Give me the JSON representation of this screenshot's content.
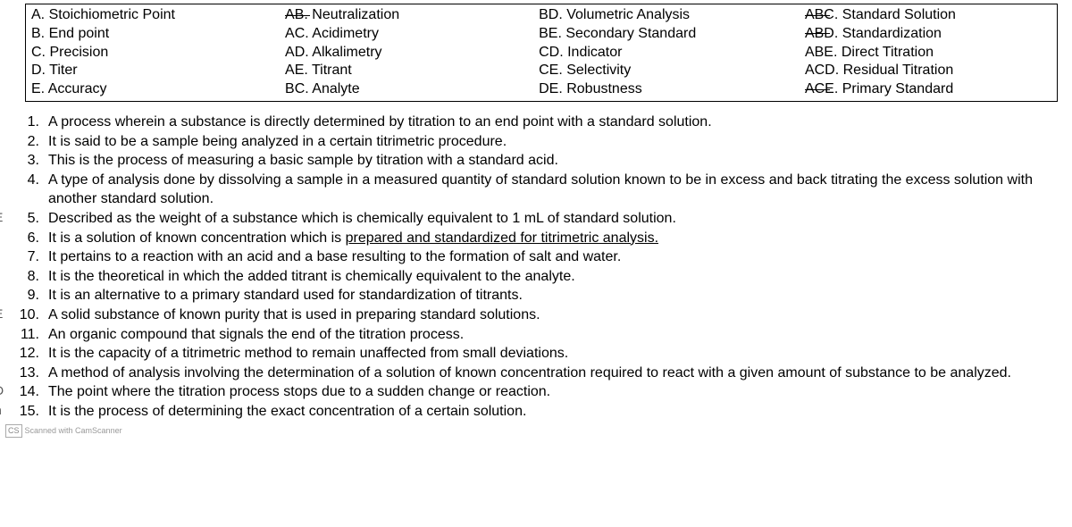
{
  "choices": {
    "col1": [
      {
        "code": "A.",
        "label": "Stoichiometric Point",
        "strike": false
      },
      {
        "code": "B.",
        "label": "End point",
        "strike": false
      },
      {
        "code": "C.",
        "label": "Precision",
        "strike": false
      },
      {
        "code": "D.",
        "label": "Titer",
        "strike": false
      },
      {
        "code": "E.",
        "label": "Accuracy",
        "strike": false
      }
    ],
    "col2": [
      {
        "code": "AB.",
        "label": "Neutralization",
        "strike": true
      },
      {
        "code": "AC.",
        "label": "Acidimetry",
        "strike": false
      },
      {
        "code": "AD.",
        "label": "Alkalimetry",
        "strike": false
      },
      {
        "code": "AE.",
        "label": "Titrant",
        "strike": false
      },
      {
        "code": "BC.",
        "label": "Analyte",
        "strike": false
      }
    ],
    "col3": [
      {
        "code": "BD.",
        "label": "Volumetric Analysis",
        "strike": false
      },
      {
        "code": "BE.",
        "label": "Secondary Standard",
        "strike": false
      },
      {
        "code": "CD.",
        "label": "Indicator",
        "strike": false
      },
      {
        "code": "CE.",
        "label": "Selectivity",
        "strike": false
      },
      {
        "code": "DE.",
        "label": "Robustness",
        "strike": false
      }
    ],
    "col4": [
      {
        "code": "ABC.",
        "label": "Standard Solution",
        "strike": true
      },
      {
        "code": "ABD.",
        "label": "Standardization",
        "strike": true
      },
      {
        "code": "ABE.",
        "label": "Direct Titration",
        "strike": false
      },
      {
        "code": "ACD.",
        "label": "Residual Titration",
        "strike": false
      },
      {
        "code": "ACE.",
        "label": "Primary Standard",
        "strike": true
      }
    ]
  },
  "questions": [
    {
      "n": "1.",
      "prefix": "",
      "text": "A process wherein a substance is directly determined by titration to an end point with a standard solution."
    },
    {
      "n": "2.",
      "prefix": "",
      "text": "It is said to be a sample being analyzed in a certain titrimetric procedure."
    },
    {
      "n": "3.",
      "prefix": "",
      "text": "This is the process of measuring a basic sample by titration with a standard acid."
    },
    {
      "n": "4.",
      "prefix": "",
      "text": "A type of analysis done by dissolving a sample in a measured quantity of standard solution known to be in excess and back titrating the excess solution with another standard solution."
    },
    {
      "n": "5.",
      "prefix": "E",
      "text": "Described as the weight of a substance which is chemically equivalent to 1 mL of standard solution."
    },
    {
      "n": "6.",
      "prefix": "",
      "text": "It is a solution of known concentration which is prepared and standardized for titrimetric analysis.",
      "underlineTail": true
    },
    {
      "n": "7.",
      "prefix": "",
      "text": "It pertains to a reaction with an acid and a base resulting to the formation of salt and water."
    },
    {
      "n": "8.",
      "prefix": "",
      "text": "It is the theoretical in which the added titrant is chemically equivalent to the analyte."
    },
    {
      "n": "9.",
      "prefix": "",
      "text": "It is an alternative to a primary standard used for standardization of titrants."
    },
    {
      "n": "10.",
      "prefix": "E",
      "text": "A solid substance of known purity that is used in preparing standard solutions."
    },
    {
      "n": "11.",
      "prefix": "",
      "text": "An organic compound that signals the end of the titration process."
    },
    {
      "n": "12.",
      "prefix": "",
      "text": "It is the capacity of a titrimetric method to remain unaffected from small deviations."
    },
    {
      "n": "13.",
      "prefix": "",
      "text": "A method of analysis involving the determination of a solution of known concentration required to react with a given amount of substance to be analyzed."
    },
    {
      "n": "14.",
      "prefix": "D",
      "text": "The point where the titration process stops due to a sudden change or reaction."
    },
    {
      "n": "15.",
      "prefix": "n",
      "text": "It is the process of determining the exact concentration of a certain solution."
    }
  ],
  "footer": {
    "badge": "CS",
    "text": "Scanned with CamScanner"
  }
}
